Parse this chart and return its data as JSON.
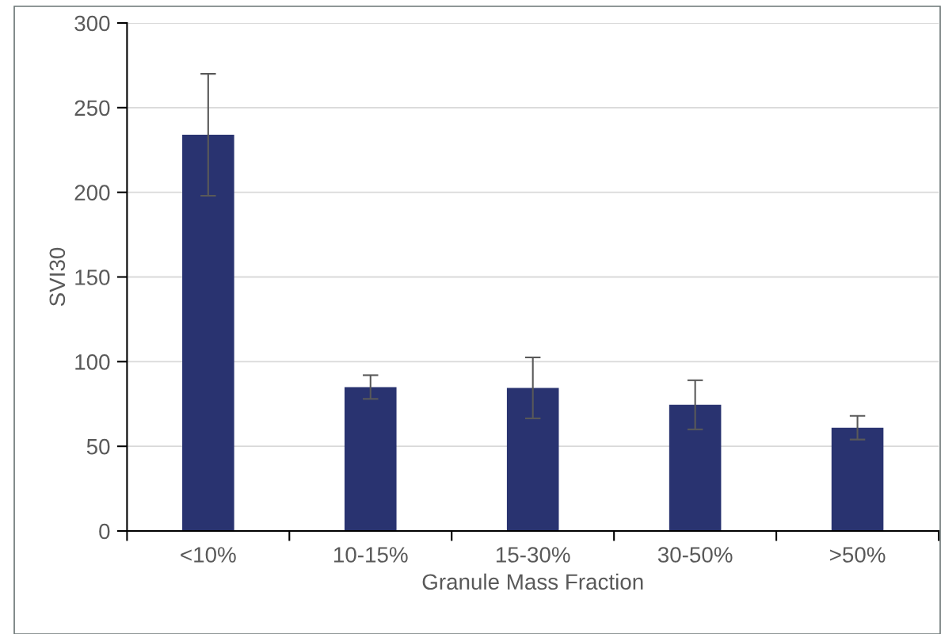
{
  "chart_data": {
    "type": "bar",
    "xlabel": "Granule Mass Fraction",
    "ylabel": "SVI30",
    "categories": [
      "<10%",
      "10-15%",
      "15-30%",
      "30-50%",
      ">50%"
    ],
    "values": [
      234,
      85,
      84.5,
      74.5,
      61
    ],
    "errors": [
      36,
      7,
      18,
      14.5,
      7
    ],
    "color": "#293370",
    "ylim": [
      0,
      300
    ],
    "yticks": [
      0,
      50,
      100,
      150,
      200,
      250,
      300
    ],
    "grid": "y"
  }
}
